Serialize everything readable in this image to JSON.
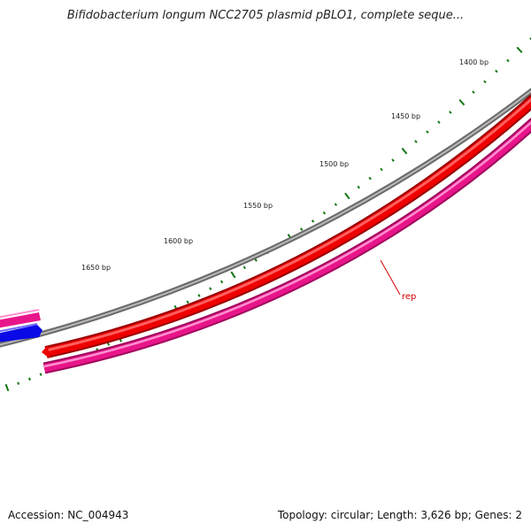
{
  "title": "Bifidobacterium longum NCC2705 plasmid pBLO1, complete seque...",
  "footer": {
    "accession": "Accession: NC_004943",
    "summary": "Topology: circular; Length: 3,626 bp; Genes: 2"
  },
  "tick_labels": [
    "1400 bp",
    "1450 bp",
    "1500 bp",
    "1550 bp",
    "1600 bp",
    "1650 bp"
  ],
  "gene_label": "rep",
  "colors": {
    "backbone": "#808080",
    "gene_red": "#ee0000",
    "cds_magenta": "#e8158a",
    "cds_blue": "#0a0ae6",
    "tick": "#117711",
    "label_line": "#d40000"
  }
}
